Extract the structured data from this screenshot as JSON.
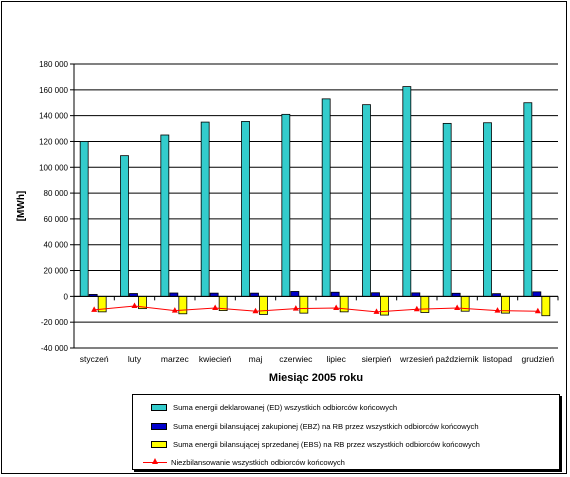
{
  "chart_data": {
    "type": "bar",
    "title": "",
    "xlabel": "Miesiąc 2005 roku",
    "ylabel": "[MWh]",
    "ylim": [
      -40000,
      180000
    ],
    "yticks": [
      -40000,
      -20000,
      0,
      20000,
      40000,
      60000,
      80000,
      100000,
      120000,
      140000,
      160000,
      180000
    ],
    "ytick_labels": [
      "-40 000",
      "-20 000",
      "0",
      "20 000",
      "40 000",
      "60 000",
      "80 000",
      "100 000",
      "120 000",
      "140 000",
      "160 000",
      "180 000"
    ],
    "grid": true,
    "legend_position": "bottom",
    "categories": [
      "styczeń",
      "luty",
      "marzec",
      "kwiecień",
      "maj",
      "czerwiec",
      "lipiec",
      "sierpień",
      "wrzesień",
      "październik",
      "listopad",
      "grudzień"
    ],
    "series": [
      {
        "name": "Suma energii deklarowanej (ED) wszystkich odbiorców końcowych",
        "kind": "bar",
        "color": "#33cccc",
        "values": [
          120000,
          109000,
          125000,
          135000,
          135500,
          141000,
          153000,
          148500,
          162500,
          134000,
          134500,
          150000
        ]
      },
      {
        "name": "Suma energii bilansującej zakupionej (EBZ) na RB przez wszystkich odbiorców końcowych",
        "kind": "bar",
        "color": "#0000cc",
        "values": [
          1500,
          2200,
          2600,
          2500,
          2500,
          3800,
          3200,
          2800,
          2700,
          2400,
          2100,
          3500
        ]
      },
      {
        "name": "Suma energii bilansującej sprzedanej (EBS) na RB przez wszystkich odbiorców końcowych",
        "kind": "bar",
        "color": "#ffff00",
        "values": [
          -12000,
          -9500,
          -13500,
          -11000,
          -14000,
          -13000,
          -12000,
          -14500,
          -12500,
          -11500,
          -13000,
          -15000
        ]
      },
      {
        "name": "Niezbilansowanie wszystkich odbiorców końcowych",
        "kind": "line",
        "color": "#ff0000",
        "values": [
          -10500,
          -7500,
          -11000,
          -9000,
          -11500,
          -9500,
          -9000,
          -12000,
          -10000,
          -9000,
          -11000,
          -11500
        ]
      }
    ]
  }
}
